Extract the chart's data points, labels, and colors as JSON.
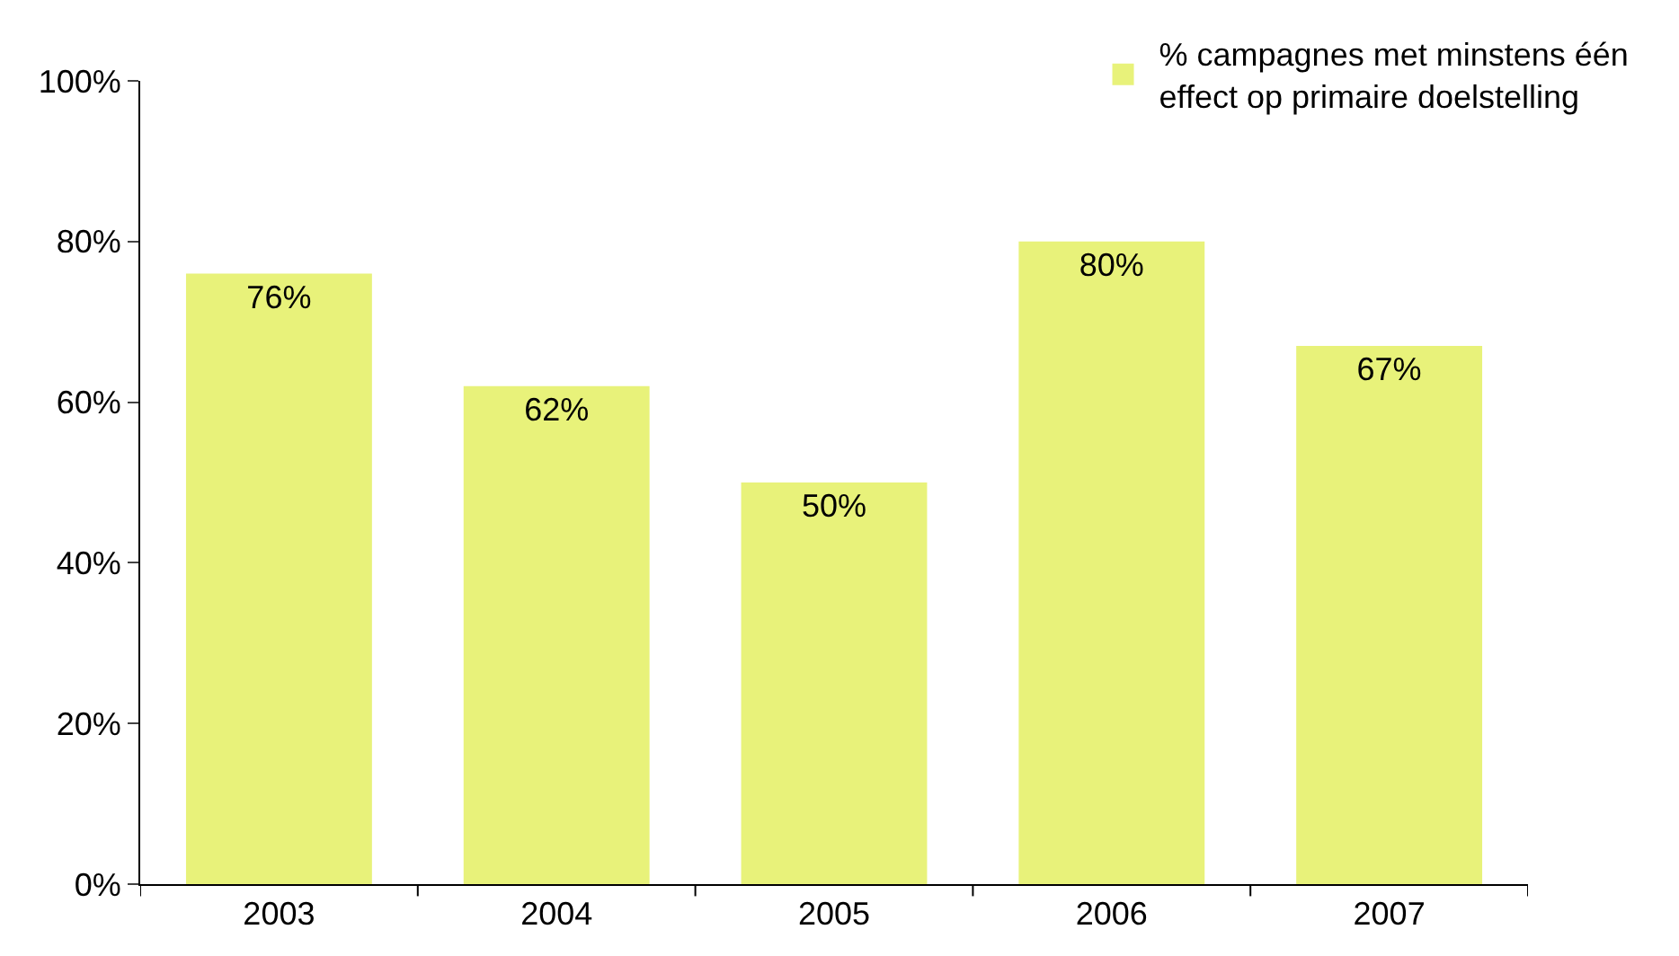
{
  "chart_data": {
    "type": "bar",
    "categories": [
      "2003",
      "2004",
      "2005",
      "2006",
      "2007"
    ],
    "series": [
      {
        "name": "% campagnes met minstens één\neffect op primaire doelstelling",
        "color": "#e8f27a",
        "values": [
          76,
          62,
          50,
          80,
          67
        ],
        "value_labels": [
          "76%",
          "62%",
          "50%",
          "80%",
          "67%"
        ]
      }
    ],
    "ylim": [
      0,
      100
    ],
    "yticks": [
      {
        "value": 0,
        "label": "0%"
      },
      {
        "value": 20,
        "label": "20%"
      },
      {
        "value": 40,
        "label": "40%"
      },
      {
        "value": 60,
        "label": "60%"
      },
      {
        "value": 80,
        "label": "80%"
      },
      {
        "value": 100,
        "label": "100%"
      }
    ],
    "legend": "top right"
  }
}
